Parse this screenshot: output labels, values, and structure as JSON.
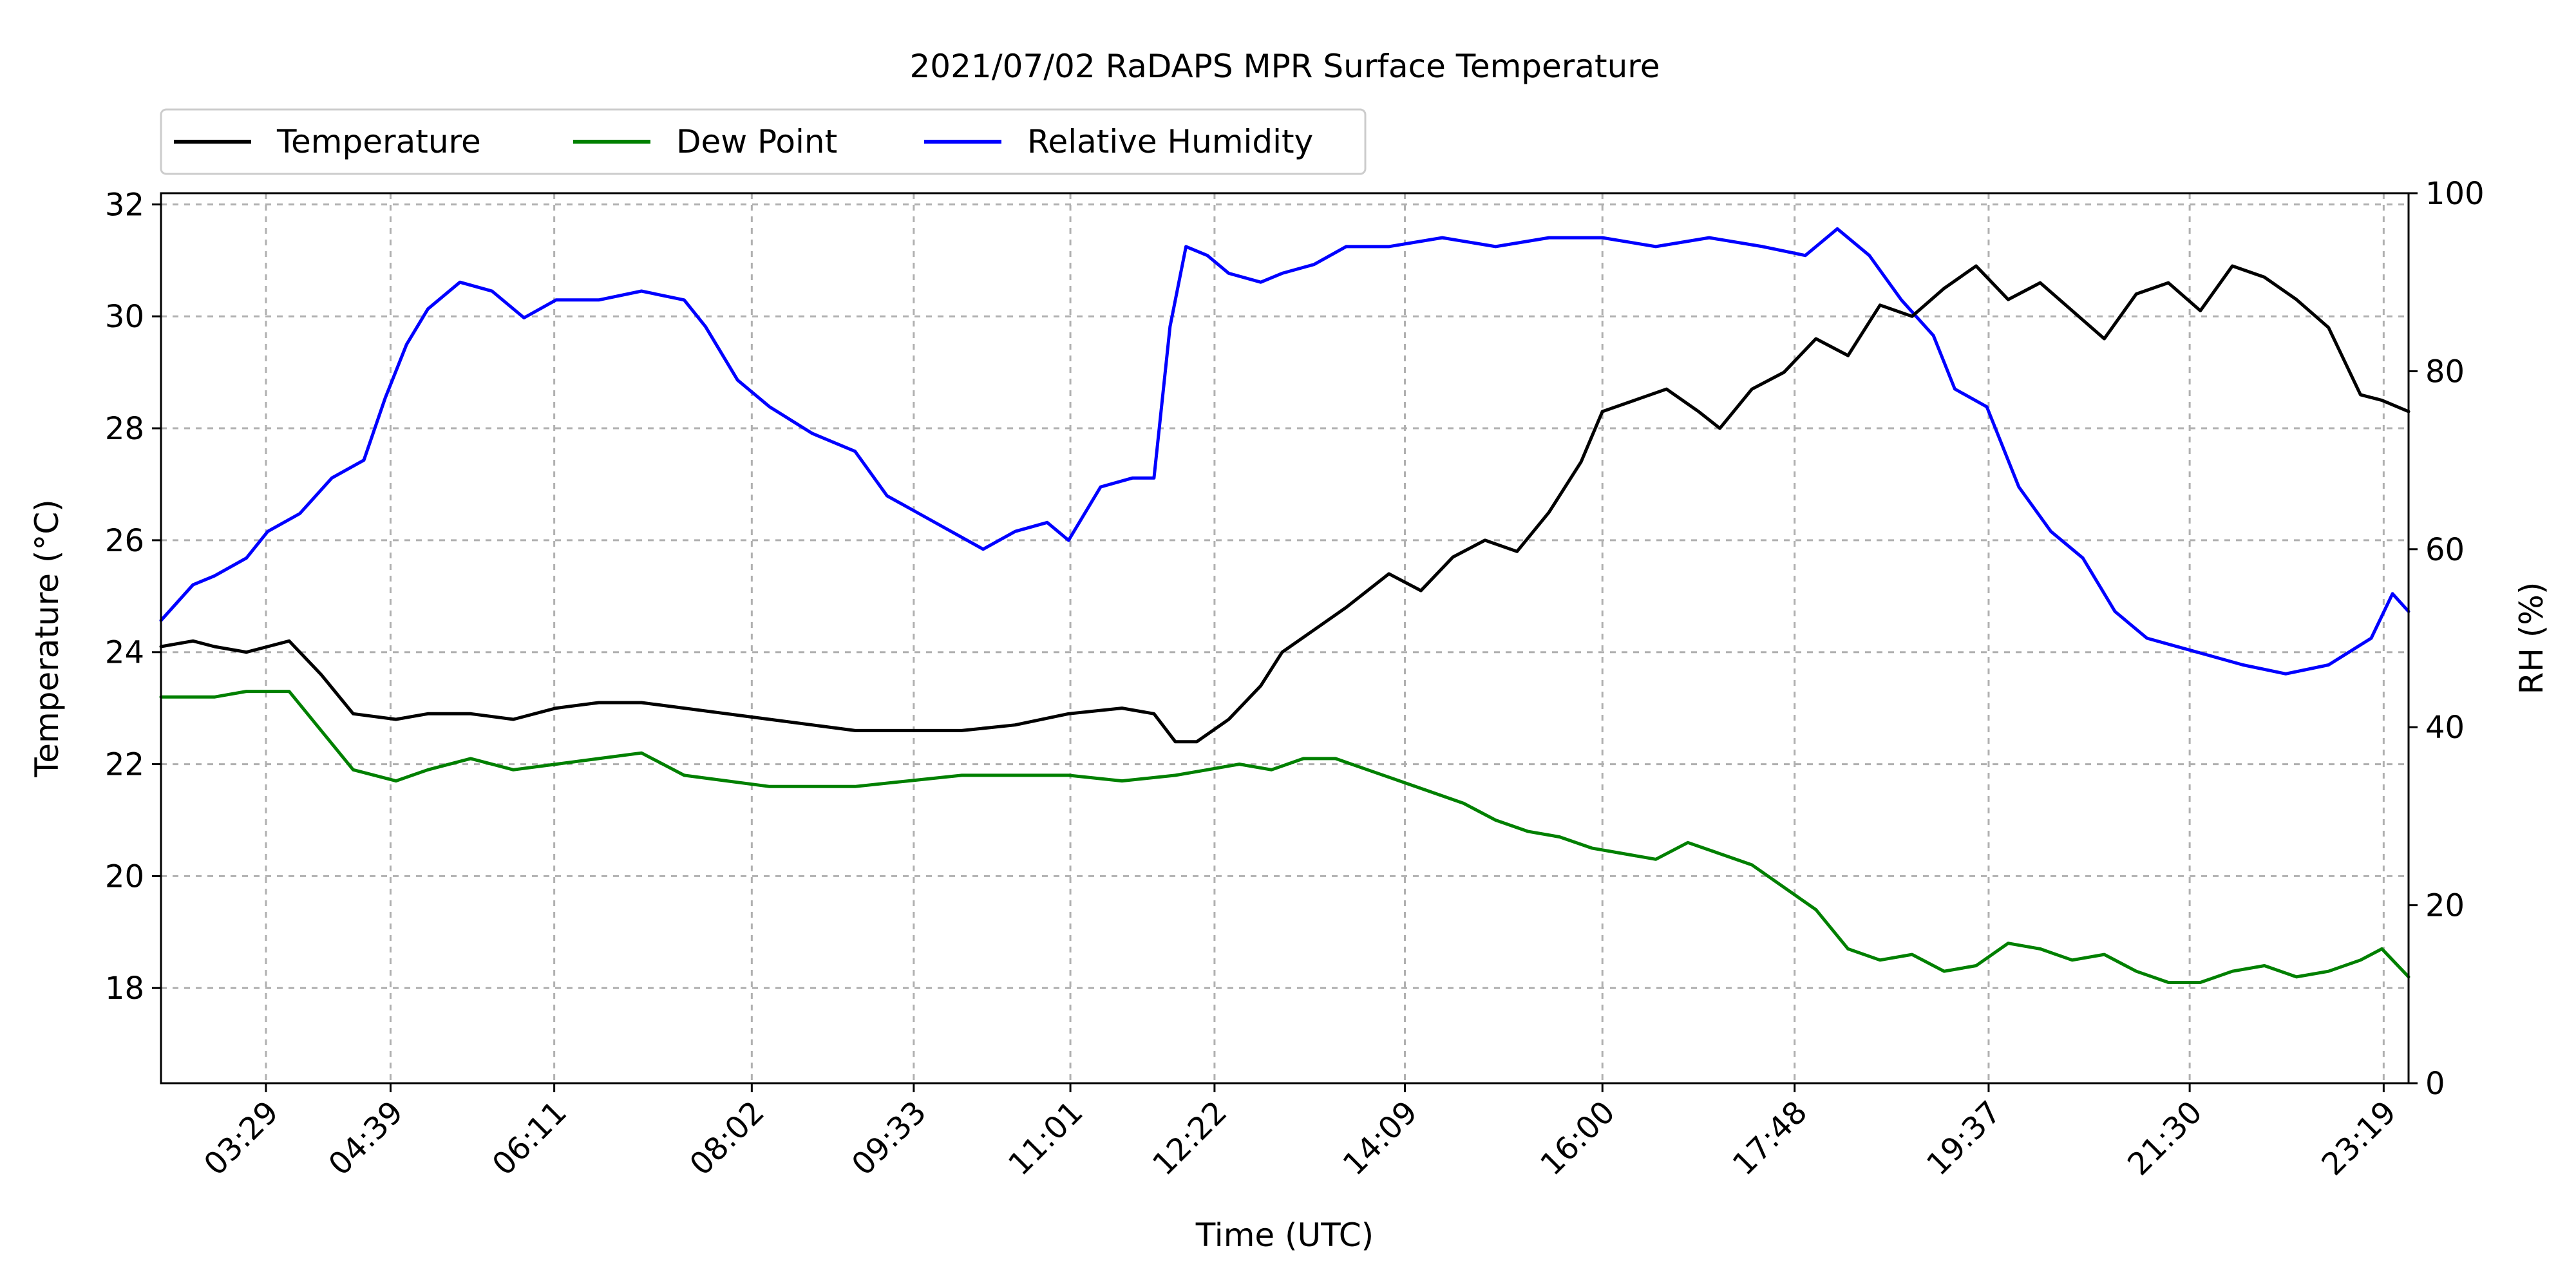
{
  "chart_data": {
    "type": "line",
    "title": "2021/07/02 RaDAPS MPR Surface Temperature",
    "xlabel": "Time (UTC)",
    "ylabel_left": "Temperature ($^\\circ$C)",
    "ylabel_left_display": "Temperature (°C)",
    "ylabel_right": "RH (%)",
    "x_tick_labels": [
      "03:29",
      "04:39",
      "06:11",
      "08:02",
      "09:33",
      "11:01",
      "12:22",
      "14:09",
      "16:00",
      "17:48",
      "19:37",
      "21:30",
      "23:19"
    ],
    "x_tick_hours": [
      3.483,
      4.65,
      6.183,
      8.033,
      9.55,
      11.017,
      12.367,
      14.15,
      16.0,
      17.8,
      19.617,
      21.5,
      23.317
    ],
    "xlim_hours": [
      2.5,
      23.55
    ],
    "ylim_left": [
      16.3,
      32.2
    ],
    "ylim_right": [
      0,
      100
    ],
    "y_left_ticks": [
      18,
      20,
      22,
      24,
      26,
      28,
      30,
      32
    ],
    "y_right_ticks": [
      0,
      20,
      40,
      60,
      80,
      100
    ],
    "grid": true,
    "legend": {
      "placement": "top-left, above plot",
      "entries": [
        {
          "name": "Temperature",
          "color": "#000000"
        },
        {
          "name": "Dew Point",
          "color": "#008000"
        },
        {
          "name": "Relative Humidity",
          "color": "#0000ff"
        }
      ]
    },
    "series": [
      {
        "name": "Temperature",
        "axis": "left",
        "color": "#000000",
        "x": [
          2.5,
          2.8,
          3.0,
          3.3,
          3.5,
          3.7,
          4.0,
          4.3,
          4.7,
          5.0,
          5.4,
          5.8,
          6.2,
          6.6,
          7.0,
          7.4,
          7.8,
          8.2,
          8.6,
          9.0,
          9.5,
          10.0,
          10.5,
          11.0,
          11.5,
          11.8,
          12.0,
          12.2,
          12.5,
          12.8,
          13.0,
          13.3,
          13.6,
          14.0,
          14.3,
          14.6,
          14.9,
          15.2,
          15.5,
          15.8,
          16.0,
          16.3,
          16.6,
          16.9,
          17.1,
          17.4,
          17.7,
          18.0,
          18.3,
          18.6,
          18.9,
          19.2,
          19.5,
          19.8,
          20.1,
          20.4,
          20.7,
          21.0,
          21.3,
          21.6,
          21.9,
          22.2,
          22.5,
          22.8,
          23.1,
          23.3,
          23.55
        ],
        "values": [
          24.1,
          24.2,
          24.1,
          24.0,
          24.1,
          24.2,
          23.6,
          22.9,
          22.8,
          22.9,
          22.9,
          22.8,
          23.0,
          23.1,
          23.1,
          23.0,
          22.9,
          22.8,
          22.7,
          22.6,
          22.6,
          22.6,
          22.7,
          22.9,
          23.0,
          22.9,
          22.4,
          22.4,
          22.8,
          23.4,
          24.0,
          24.4,
          24.8,
          25.4,
          25.1,
          25.7,
          26.0,
          25.8,
          26.5,
          27.4,
          28.3,
          28.5,
          28.7,
          28.3,
          28.0,
          28.7,
          29.0,
          29.6,
          29.3,
          30.2,
          30.0,
          30.5,
          30.9,
          30.3,
          30.6,
          30.1,
          29.6,
          30.4,
          30.6,
          30.1,
          30.9,
          30.7,
          30.3,
          29.8,
          28.6,
          28.5,
          28.3
        ]
      },
      {
        "name": "Dew Point",
        "axis": "left",
        "color": "#008000",
        "x": [
          2.5,
          2.8,
          3.0,
          3.3,
          3.5,
          3.7,
          4.0,
          4.3,
          4.7,
          5.0,
          5.4,
          5.8,
          6.2,
          6.6,
          7.0,
          7.4,
          7.8,
          8.2,
          8.6,
          9.0,
          9.5,
          10.0,
          10.5,
          11.0,
          11.5,
          12.0,
          12.3,
          12.6,
          12.9,
          13.2,
          13.5,
          13.8,
          14.1,
          14.4,
          14.7,
          15.0,
          15.3,
          15.6,
          15.9,
          16.2,
          16.5,
          16.8,
          17.1,
          17.4,
          17.7,
          18.0,
          18.3,
          18.6,
          18.9,
          19.2,
          19.5,
          19.8,
          20.1,
          20.4,
          20.7,
          21.0,
          21.3,
          21.6,
          21.9,
          22.2,
          22.5,
          22.8,
          23.1,
          23.3,
          23.55
        ],
        "values": [
          23.2,
          23.2,
          23.2,
          23.3,
          23.3,
          23.3,
          22.6,
          21.9,
          21.7,
          21.9,
          22.1,
          21.9,
          22.0,
          22.1,
          22.2,
          21.8,
          21.7,
          21.6,
          21.6,
          21.6,
          21.7,
          21.8,
          21.8,
          21.8,
          21.7,
          21.8,
          21.9,
          22.0,
          21.9,
          22.1,
          22.1,
          21.9,
          21.7,
          21.5,
          21.3,
          21.0,
          20.8,
          20.7,
          20.5,
          20.4,
          20.3,
          20.6,
          20.4,
          20.2,
          19.8,
          19.4,
          18.7,
          18.5,
          18.6,
          18.3,
          18.4,
          18.8,
          18.7,
          18.5,
          18.6,
          18.3,
          18.1,
          18.1,
          18.3,
          18.4,
          18.2,
          18.3,
          18.5,
          18.7,
          18.2
        ]
      },
      {
        "name": "Relative Humidity",
        "axis": "right",
        "color": "#0000ff",
        "x": [
          2.5,
          2.8,
          3.0,
          3.3,
          3.5,
          3.8,
          4.1,
          4.4,
          4.6,
          4.8,
          5.0,
          5.3,
          5.6,
          5.9,
          6.2,
          6.6,
          7.0,
          7.4,
          7.6,
          7.9,
          8.2,
          8.6,
          9.0,
          9.3,
          9.6,
          9.9,
          10.2,
          10.5,
          10.8,
          11.0,
          11.3,
          11.6,
          11.8,
          11.95,
          12.1,
          12.3,
          12.5,
          12.8,
          13.0,
          13.3,
          13.6,
          14.0,
          14.5,
          15.0,
          15.5,
          16.0,
          16.5,
          17.0,
          17.5,
          17.9,
          18.2,
          18.5,
          18.8,
          19.1,
          19.3,
          19.6,
          19.9,
          20.2,
          20.5,
          20.8,
          21.1,
          21.4,
          21.7,
          22.0,
          22.4,
          22.8,
          23.2,
          23.4,
          23.55
        ],
        "values": [
          52,
          56,
          57,
          59,
          62,
          64,
          68,
          70,
          77,
          83,
          87,
          90,
          89,
          86,
          88,
          88,
          89,
          88,
          85,
          79,
          76,
          73,
          71,
          66,
          64,
          62,
          60,
          62,
          63,
          61,
          67,
          68,
          68,
          85,
          94,
          93,
          91,
          90,
          91,
          92,
          94,
          94,
          95,
          94,
          95,
          95,
          94,
          95,
          94,
          93,
          96,
          93,
          88,
          84,
          78,
          76,
          67,
          62,
          59,
          53,
          50,
          49,
          48,
          47,
          46,
          47,
          50,
          55,
          53
        ]
      }
    ]
  }
}
